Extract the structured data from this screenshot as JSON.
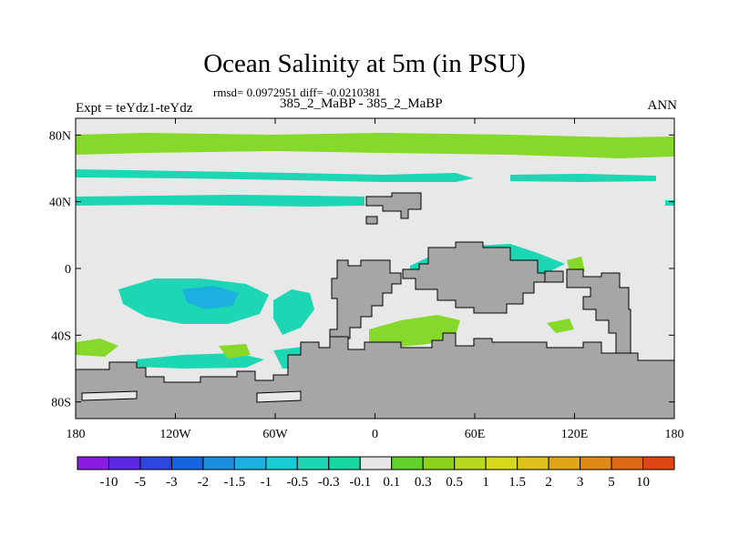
{
  "title": "Ocean Salinity at 5m (in PSU)",
  "stats_line": "rmsd= 0.0972951 diff= -0.0210381",
  "case_line": "385_2_MaBP - 385_2_MaBP",
  "expt_line": "Expt = teYdz1-teYdz",
  "season": "ANN",
  "colors": {
    "land": "#a6a6a6",
    "ocean_near_zero": "#e8e8e8"
  },
  "map": {
    "lon_range": [
      -180,
      180
    ],
    "lat_range": [
      -90,
      90
    ],
    "x_ticks": [
      {
        "lon": -180,
        "label": "180"
      },
      {
        "lon": -120,
        "label": "120W"
      },
      {
        "lon": -60,
        "label": "60W"
      },
      {
        "lon": 0,
        "label": "0"
      },
      {
        "lon": 60,
        "label": "60E"
      },
      {
        "lon": 120,
        "label": "120E"
      },
      {
        "lon": 180,
        "label": "180"
      }
    ],
    "y_ticks": [
      {
        "lat": 80,
        "label": "80N"
      },
      {
        "lat": 40,
        "label": "40N"
      },
      {
        "lat": 0,
        "label": "0"
      },
      {
        "lat": -40,
        "label": "40S"
      },
      {
        "lat": -80,
        "label": "80S"
      }
    ]
  },
  "colorbar": {
    "colors": [
      "#8a1be0",
      "#5a28e0",
      "#2f45e0",
      "#1565e0",
      "#1c8ee0",
      "#1cb0e0",
      "#18cbd6",
      "#1dd6b4",
      "#16d8a0",
      "#e6e6e6",
      "#60d22a",
      "#8cd21a",
      "#b6d81e",
      "#d8d81c",
      "#dcc21a",
      "#e0a618",
      "#e08a16",
      "#e06a14",
      "#e04612"
    ],
    "labels": [
      "-10",
      "-5",
      "-3",
      "-2",
      "-1.5",
      "-1",
      "-0.5",
      "-0.3",
      "-0.1",
      "0.1",
      "0.3",
      "0.5",
      "1",
      "1.5",
      "2",
      "3",
      "5",
      "10"
    ]
  }
}
